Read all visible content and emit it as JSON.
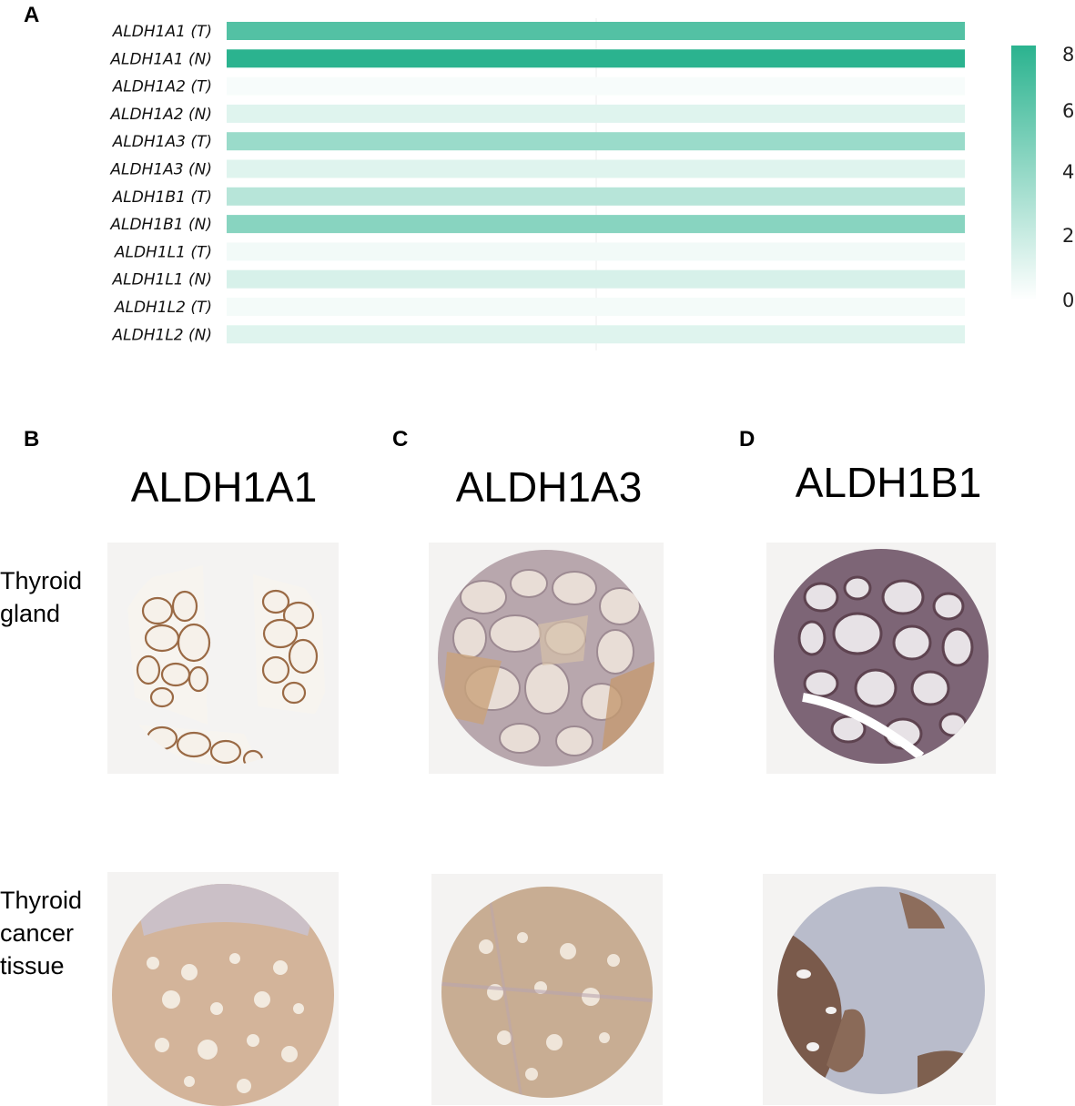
{
  "panels": {
    "a": "A",
    "b": "B",
    "c": "C",
    "d": "D"
  },
  "chart_data": {
    "type": "heatmap",
    "rows": [
      "ALDH1A1 (T)",
      "ALDH1A1 (N)",
      "ALDH1A2 (T)",
      "ALDH1A2 (N)",
      "ALDH1A3 (T)",
      "ALDH1A3 (N)",
      "ALDH1B1 (T)",
      "ALDH1B1 (N)",
      "ALDH1L1 (T)",
      "ALDH1L1 (N)",
      "ALDH1L2 (T)",
      "ALDH1L2 (N)"
    ],
    "values": [
      6.5,
      8.2,
      0.3,
      1.2,
      3.8,
      1.2,
      2.7,
      4.5,
      0.5,
      1.5,
      0.4,
      1.2
    ],
    "colorbar": {
      "min": 0,
      "max": 8,
      "ticks": [
        "8",
        "6",
        "4",
        "2",
        "0"
      ],
      "color_low": "#ffffff",
      "color_high": "#2bb38f"
    }
  },
  "ihc": {
    "genes": [
      "ALDH1A1",
      "ALDH1A3",
      "ALDH1B1"
    ],
    "row_labels": [
      {
        "lines": [
          "Thyroid",
          "gland"
        ]
      },
      {
        "lines": [
          "Thyroid",
          "cancer",
          "tissue"
        ]
      }
    ]
  }
}
